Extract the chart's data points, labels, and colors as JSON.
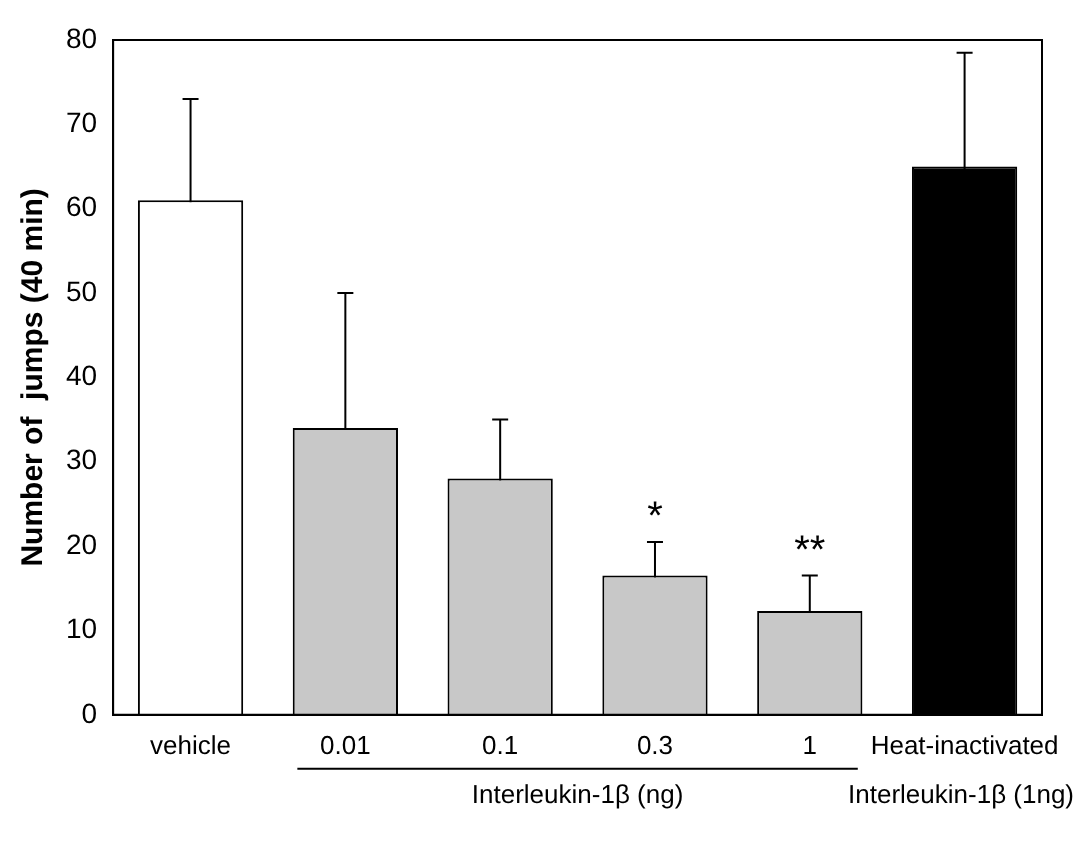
{
  "chart_data": {
    "type": "bar",
    "ylabel": "Number of  jumps (40 min)",
    "categories": [
      "vehicle",
      "0.01",
      "0.1",
      "0.3",
      "1",
      "Heat-inactivated"
    ],
    "values": [
      61,
      34,
      28,
      16.5,
      12.3,
      65
    ],
    "colors": [
      "#ffffff",
      "#c8c8c8",
      "#c8c8c8",
      "#c8c8c8",
      "#c8c8c8",
      "#000000"
    ],
    "errors": [
      12,
      16,
      7,
      4,
      4.2,
      13.5
    ],
    "ylim": [
      0,
      80
    ],
    "yticks": [
      0,
      10,
      20,
      30,
      40,
      50,
      60,
      70,
      80
    ],
    "grid": false,
    "legend": false,
    "annotations": [
      "*",
      "**",
      "Interleukin-1β (ng)",
      "Interleukin-1β (1ng)"
    ]
  }
}
